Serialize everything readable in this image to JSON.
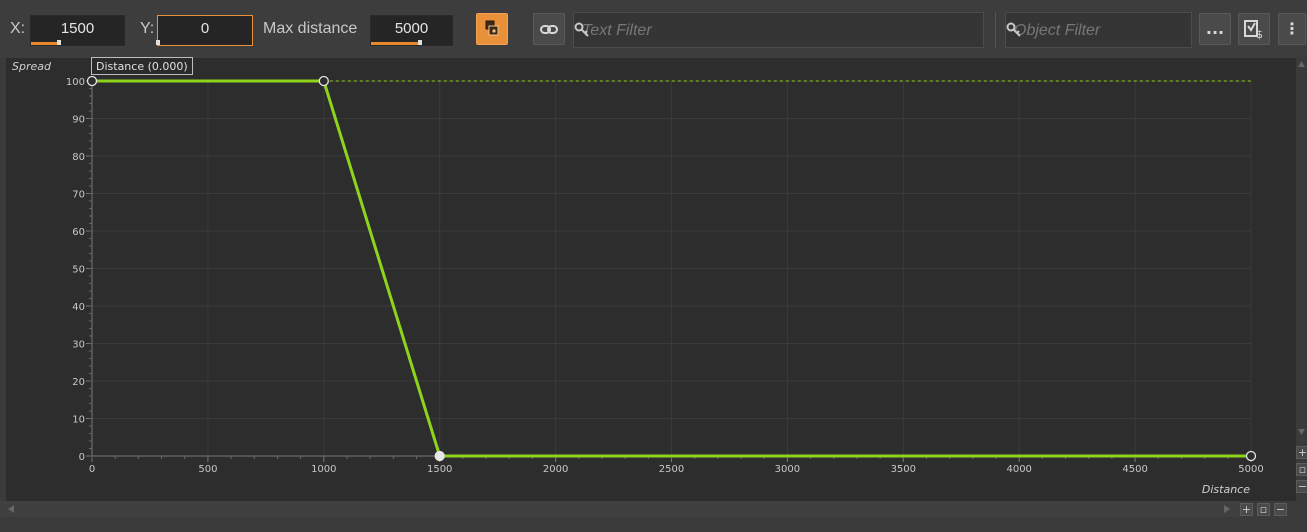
{
  "toolbar": {
    "x_label": "X:",
    "x_value": "1500",
    "x_fill": 0.3,
    "y_label": "Y:",
    "y_value": "0",
    "y_fill": 0.0,
    "max_distance_label": "Max distance",
    "max_distance_value": "5000",
    "max_distance_fill": 0.6,
    "text_filter_placeholder": "Text Filter",
    "object_filter_placeholder": "Object Filter",
    "more_label": "...",
    "menu_label": "⋮"
  },
  "tooltip": "Distance (0.000)",
  "colors": {
    "curve": "#8fd41c",
    "accent": "#e8913a",
    "background": "#2d2d2d"
  },
  "chart_data": {
    "type": "line",
    "xlabel": "Distance",
    "ylabel": "Spread",
    "xlim": [
      0,
      5000
    ],
    "ylim": [
      0,
      100
    ],
    "x_ticks": [
      "0",
      "500",
      "1000",
      "1500",
      "2000",
      "2500",
      "3000",
      "3500",
      "4000",
      "4500",
      "5000"
    ],
    "y_ticks": [
      "0",
      "10",
      "20",
      "30",
      "40",
      "50",
      "60",
      "70",
      "80",
      "90",
      "100"
    ],
    "series": [
      {
        "points": [
          [
            0,
            100
          ],
          [
            1000,
            100
          ],
          [
            1500,
            0
          ],
          [
            5000,
            0
          ]
        ]
      }
    ],
    "selected_point": 2,
    "reference_line_y": 100,
    "grid": true
  }
}
